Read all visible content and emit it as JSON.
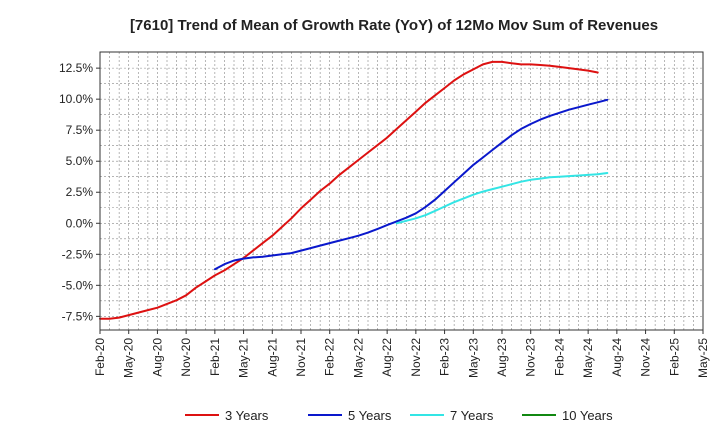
{
  "chart_data": {
    "type": "line",
    "title": "[7610]  Trend of Mean of Growth Rate (YoY) of 12Mo Mov Sum of Revenues",
    "xlabel": "",
    "ylabel": "",
    "x_ticks": [
      "Feb-20",
      "May-20",
      "Aug-20",
      "Nov-20",
      "Feb-21",
      "May-21",
      "Aug-21",
      "Nov-21",
      "Feb-22",
      "May-22",
      "Aug-22",
      "Nov-22",
      "Feb-23",
      "May-23",
      "Aug-23",
      "Nov-23",
      "Feb-24",
      "May-24",
      "Aug-24",
      "Nov-24",
      "Feb-25",
      "May-25"
    ],
    "y_ticks": [
      "12.5%",
      "10.0%",
      "7.5%",
      "5.0%",
      "2.5%",
      "0.0%",
      "-2.5%",
      "-5.0%",
      "-7.5%"
    ],
    "y_tick_values": [
      12.5,
      10.0,
      7.5,
      5.0,
      2.5,
      0.0,
      -2.5,
      -5.0,
      -7.5
    ],
    "ylim": [
      -8.6,
      13.8
    ],
    "grid": true,
    "legend_position": "bottom",
    "series": [
      {
        "name": "3 Years",
        "color": "#dd1111",
        "points": [
          [
            0,
            -7.7
          ],
          [
            1,
            -7.7
          ],
          [
            2,
            -7.6
          ],
          [
            3,
            -7.4
          ],
          [
            4,
            -7.2
          ],
          [
            5,
            -7.0
          ],
          [
            6,
            -6.8
          ],
          [
            7,
            -6.5
          ],
          [
            8,
            -6.2
          ],
          [
            9,
            -5.8
          ],
          [
            10,
            -5.2
          ],
          [
            11,
            -4.7
          ],
          [
            12,
            -4.2
          ],
          [
            13,
            -3.8
          ],
          [
            14,
            -3.3
          ],
          [
            15,
            -2.8
          ],
          [
            16,
            -2.2
          ],
          [
            17,
            -1.6
          ],
          [
            18,
            -1.0
          ],
          [
            19,
            -0.3
          ],
          [
            20,
            0.4
          ],
          [
            21,
            1.2
          ],
          [
            22,
            1.9
          ],
          [
            23,
            2.6
          ],
          [
            24,
            3.2
          ],
          [
            25,
            3.9
          ],
          [
            26,
            4.5
          ],
          [
            27,
            5.1
          ],
          [
            28,
            5.7
          ],
          [
            29,
            6.3
          ],
          [
            30,
            6.9
          ],
          [
            31,
            7.6
          ],
          [
            32,
            8.3
          ],
          [
            33,
            9.0
          ],
          [
            34,
            9.7
          ],
          [
            35,
            10.3
          ],
          [
            36,
            10.9
          ],
          [
            37,
            11.5
          ],
          [
            38,
            12.0
          ],
          [
            39,
            12.4
          ],
          [
            40,
            12.8
          ],
          [
            41,
            13.0
          ],
          [
            42,
            13.0
          ],
          [
            43,
            12.9
          ],
          [
            44,
            12.8
          ],
          [
            45,
            12.8
          ],
          [
            46,
            12.75
          ],
          [
            47,
            12.7
          ],
          [
            48,
            12.6
          ],
          [
            49,
            12.5
          ],
          [
            50,
            12.4
          ],
          [
            51,
            12.3
          ],
          [
            52,
            12.15
          ]
        ]
      },
      {
        "name": "5 Years",
        "color": "#0a18cc",
        "points": [
          [
            12,
            -3.7
          ],
          [
            13,
            -3.3
          ],
          [
            14,
            -3.0
          ],
          [
            15,
            -2.85
          ],
          [
            16,
            -2.75
          ],
          [
            17,
            -2.7
          ],
          [
            18,
            -2.6
          ],
          [
            19,
            -2.5
          ],
          [
            20,
            -2.4
          ],
          [
            21,
            -2.2
          ],
          [
            22,
            -2.0
          ],
          [
            23,
            -1.8
          ],
          [
            24,
            -1.6
          ],
          [
            25,
            -1.4
          ],
          [
            26,
            -1.2
          ],
          [
            27,
            -1.0
          ],
          [
            28,
            -0.75
          ],
          [
            29,
            -0.45
          ],
          [
            30,
            -0.15
          ],
          [
            31,
            0.15
          ],
          [
            32,
            0.45
          ],
          [
            33,
            0.8
          ],
          [
            34,
            1.3
          ],
          [
            35,
            1.9
          ],
          [
            36,
            2.6
          ],
          [
            37,
            3.3
          ],
          [
            38,
            4.0
          ],
          [
            39,
            4.7
          ],
          [
            40,
            5.3
          ],
          [
            41,
            5.9
          ],
          [
            42,
            6.5
          ],
          [
            43,
            7.1
          ],
          [
            44,
            7.6
          ],
          [
            45,
            8.0
          ],
          [
            46,
            8.35
          ],
          [
            47,
            8.65
          ],
          [
            48,
            8.9
          ],
          [
            49,
            9.15
          ],
          [
            50,
            9.35
          ],
          [
            51,
            9.55
          ],
          [
            52,
            9.75
          ],
          [
            53,
            9.95
          ]
        ]
      },
      {
        "name": "7 Years",
        "color": "#33e5e5",
        "points": [
          [
            31,
            0.0
          ],
          [
            32,
            0.2
          ],
          [
            33,
            0.4
          ],
          [
            34,
            0.65
          ],
          [
            35,
            1.0
          ],
          [
            36,
            1.35
          ],
          [
            37,
            1.7
          ],
          [
            38,
            2.0
          ],
          [
            39,
            2.3
          ],
          [
            40,
            2.55
          ],
          [
            41,
            2.75
          ],
          [
            42,
            2.95
          ],
          [
            43,
            3.15
          ],
          [
            44,
            3.35
          ],
          [
            45,
            3.5
          ],
          [
            46,
            3.6
          ],
          [
            47,
            3.7
          ],
          [
            48,
            3.75
          ],
          [
            49,
            3.8
          ],
          [
            50,
            3.85
          ],
          [
            51,
            3.9
          ],
          [
            52,
            3.95
          ],
          [
            53,
            4.05
          ]
        ]
      },
      {
        "name": "10 Years",
        "color": "#118811",
        "points": []
      }
    ]
  }
}
